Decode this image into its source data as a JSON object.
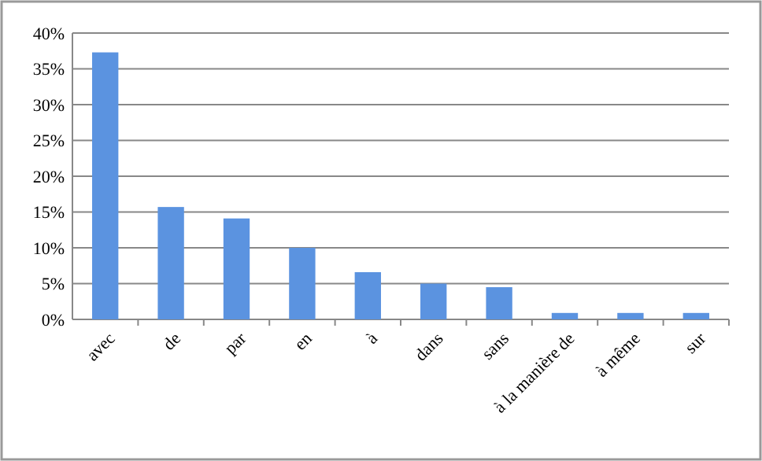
{
  "chart_data": {
    "type": "bar",
    "categories": [
      "avec",
      "de",
      "par",
      "en",
      "à",
      "dans",
      "sans",
      "à la manière de",
      "à même",
      "sur"
    ],
    "values": [
      37.3,
      15.7,
      14.1,
      10.0,
      6.6,
      5.0,
      4.5,
      0.9,
      0.9,
      0.9
    ],
    "color": "#5b93e0",
    "ylim": [
      0,
      40
    ],
    "yticks": [
      {
        "value": 0,
        "label": "0%"
      },
      {
        "value": 5,
        "label": "5%"
      },
      {
        "value": 10,
        "label": "10%"
      },
      {
        "value": 15,
        "label": "15%"
      },
      {
        "value": 20,
        "label": "20%"
      },
      {
        "value": 25,
        "label": "25%"
      },
      {
        "value": 30,
        "label": "30%"
      },
      {
        "value": 35,
        "label": "35%"
      },
      {
        "value": 40,
        "label": "40%"
      }
    ],
    "grid": "y"
  }
}
